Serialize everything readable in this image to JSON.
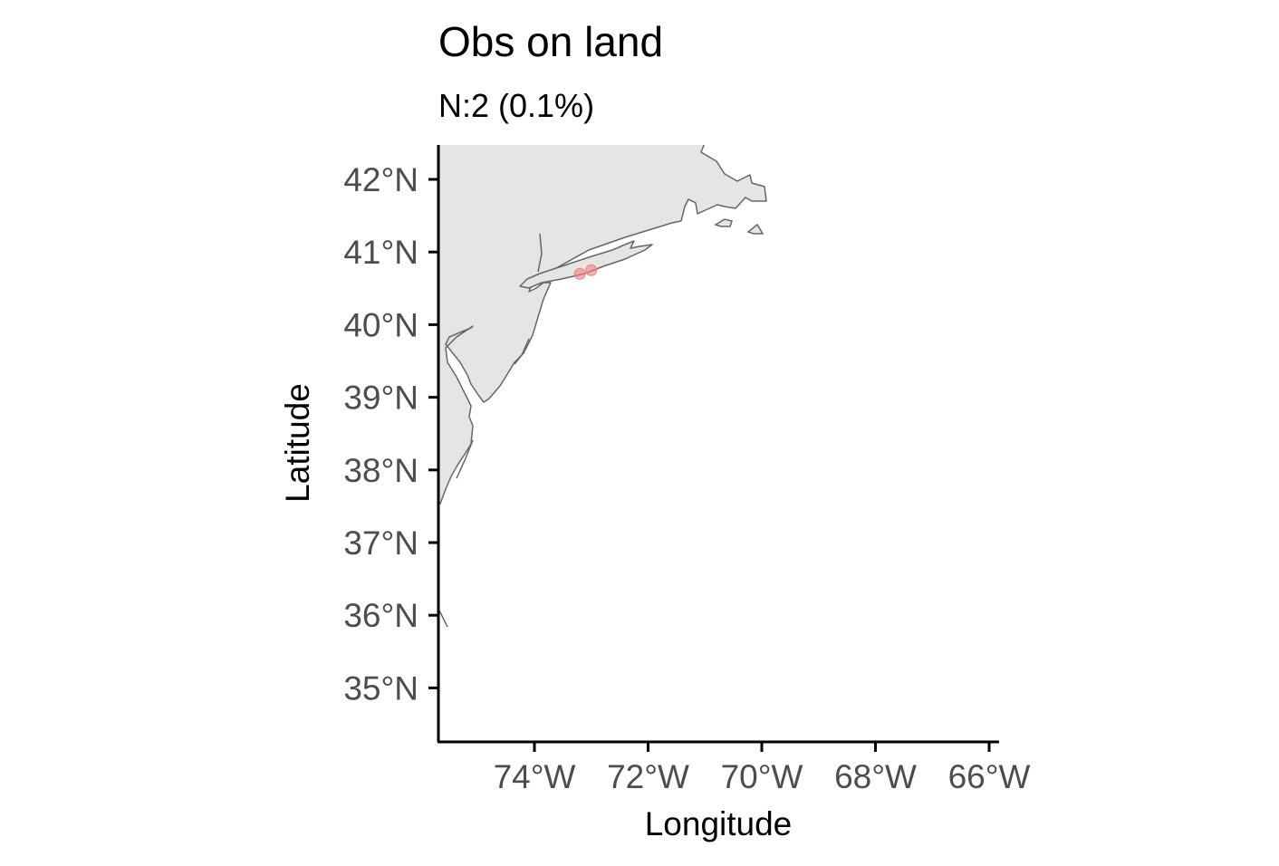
{
  "title": "Obs on land",
  "subtitle": "N:2 (0.1%)",
  "colors": {
    "land_fill": "#e5e5e5",
    "coastline": "#666666",
    "point": "#f08080",
    "axis": "#000000",
    "tick_label": "#4d4d4d"
  },
  "chart_data": {
    "type": "scatter",
    "title": "Obs on land",
    "subtitle": "N:2 (0.1%)",
    "xlabel": "Longitude",
    "ylabel": "Latitude",
    "xlim": [
      -75.7,
      -65.8
    ],
    "ylim": [
      34.3,
      42.5
    ],
    "x_ticks": [
      -74,
      -72,
      -70,
      -68,
      -66
    ],
    "x_tick_labels": [
      "74°W",
      "72°W",
      "70°W",
      "68°W",
      "66°W"
    ],
    "y_ticks": [
      35,
      36,
      37,
      38,
      39,
      40,
      41,
      42
    ],
    "y_tick_labels": [
      "35°N",
      "36°N",
      "37°N",
      "38°N",
      "39°N",
      "40°N",
      "41°N",
      "42°N"
    ],
    "grid": false,
    "points": [
      {
        "x": -73.2,
        "y": 40.7
      },
      {
        "x": -73.0,
        "y": 40.75
      }
    ]
  }
}
